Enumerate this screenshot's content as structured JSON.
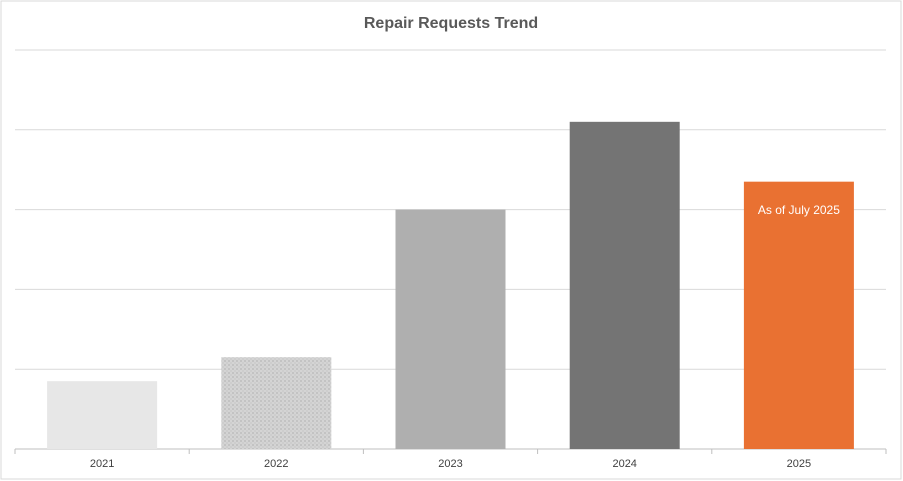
{
  "chart_data": {
    "type": "bar",
    "title": "Repair Requests Trend",
    "categories": [
      "2021",
      "2022",
      "2023",
      "2024",
      "2025"
    ],
    "values": [
      17,
      23,
      60,
      82,
      67
    ],
    "colors": [
      "#e7e7e7",
      "#d4d4d4",
      "#afafaf",
      "#747474",
      "#e97132"
    ],
    "patterns": [
      null,
      "dots",
      null,
      null,
      null
    ],
    "ylim": [
      0,
      100
    ],
    "yticks": [
      0,
      20,
      40,
      60,
      80,
      100
    ],
    "grid": true,
    "ytick_labels": false,
    "annotations": [
      {
        "text": "As of July 2025",
        "category": "2025",
        "color": "#ffffff"
      }
    ]
  }
}
